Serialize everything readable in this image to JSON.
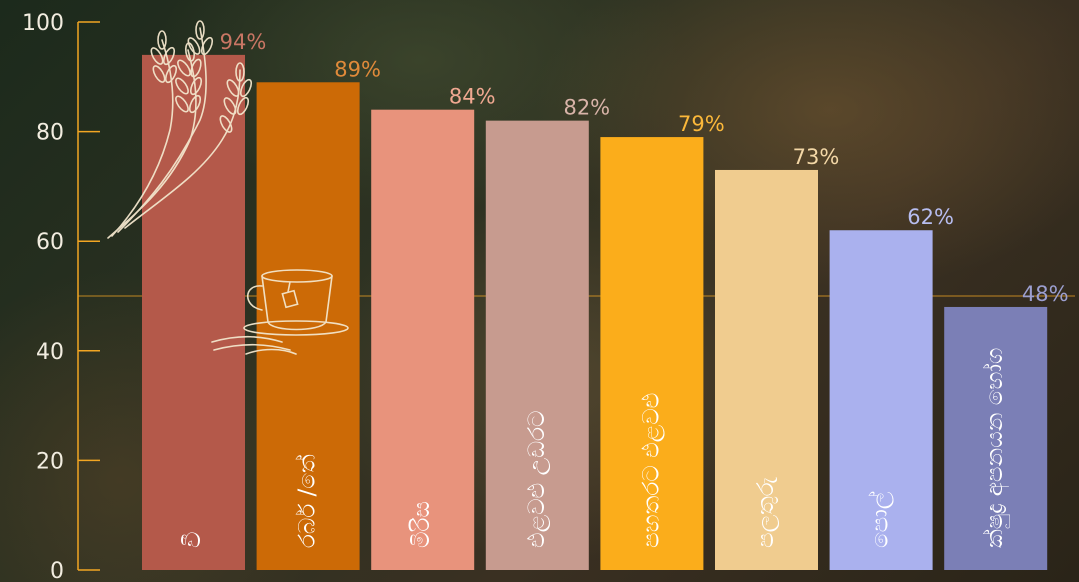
{
  "chart_data": {
    "type": "bar",
    "title": "",
    "xlabel": "",
    "ylabel": "",
    "ylim": [
      0,
      100
    ],
    "yticks": [
      0,
      20,
      40,
      60,
      80,
      100
    ],
    "reference_line": 50,
    "grid": false,
    "categories": [
      "වී",
      "රබර් /තේ",
      "මිරිස",
      "එළවළු උඩරට",
      "පහතරට එළවළු",
      "පලතුරු",
      "පොල්",
      "ක්ෂුද්‍ර අපනයන භෝග"
    ],
    "value_labels": [
      "94%",
      "89%",
      "84%",
      "82%",
      "79%",
      "73%",
      "62%",
      "48%"
    ],
    "values": [
      94,
      89,
      84,
      82,
      79,
      73,
      62,
      48
    ],
    "colors": [
      "#b4594a",
      "#cc6a06",
      "#e8937c",
      "#c79b8f",
      "#fbad1b",
      "#f0cc8f",
      "#aab1ee",
      "#7b7fb6"
    ],
    "label_colors": [
      "#c97664",
      "#e08a3a",
      "#f0a891",
      "#d8b3a8",
      "#fbb83a",
      "#f3d7a6",
      "#b7bdf0",
      "#9c9fd0"
    ],
    "axis_color": "#f2a623",
    "decorations": [
      "wheat-icon",
      "tea-cup-icon"
    ]
  }
}
